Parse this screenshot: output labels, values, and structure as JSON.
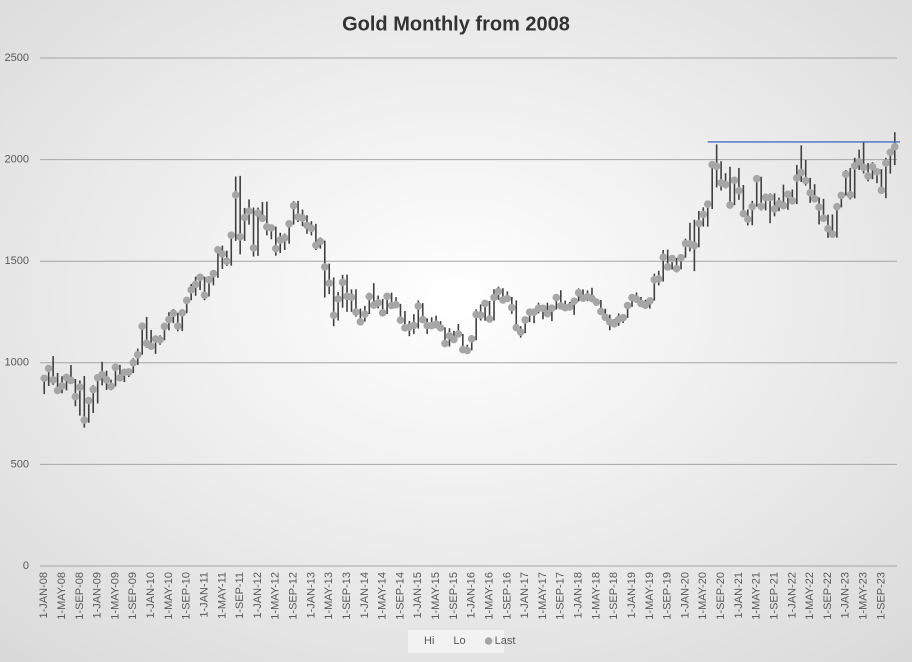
{
  "chart_data": {
    "type": "hilo",
    "title": "Gold Monthly from 2008",
    "categories": [
      "1-JAN-08",
      null,
      null,
      null,
      "1-MAY-08",
      null,
      null,
      null,
      "1-SEP-08",
      null,
      null,
      null,
      "1-JAN-09",
      null,
      null,
      null,
      "1-MAY-09",
      null,
      null,
      null,
      "1-SEP-09",
      null,
      null,
      null,
      "1-JAN-10",
      null,
      null,
      null,
      "1-MAY-10",
      null,
      null,
      null,
      "1-SEP-10",
      null,
      null,
      null,
      "1-JAN-11",
      null,
      null,
      null,
      "1-MAY-11",
      null,
      null,
      null,
      "1-SEP-11",
      null,
      null,
      null,
      "1-JAN-12",
      null,
      null,
      null,
      "1-MAY-12",
      null,
      null,
      null,
      "1-SEP-12",
      null,
      null,
      null,
      "1-JAN-13",
      null,
      null,
      null,
      "1-MAY-13",
      null,
      null,
      null,
      "1-SEP-13",
      null,
      null,
      null,
      "1-JAN-14",
      null,
      null,
      null,
      "1-MAY-14",
      null,
      null,
      null,
      "1-SEP-14",
      null,
      null,
      null,
      "1-JAN-15",
      null,
      null,
      null,
      "1-MAY-15",
      null,
      null,
      null,
      "1-SEP-15",
      null,
      null,
      null,
      "1-JAN-16",
      null,
      null,
      null,
      "1-MAY-16",
      null,
      null,
      null,
      "1-SEP-16",
      null,
      null,
      null,
      "1-JAN-17",
      null,
      null,
      null,
      "1-MAY-17",
      null,
      null,
      null,
      "1-SEP-17",
      null,
      null,
      null,
      "1-JAN-18",
      null,
      null,
      null,
      "1-MAY-18",
      null,
      null,
      null,
      "1-SEP-18",
      null,
      null,
      null,
      "1-JAN-19",
      null,
      null,
      null,
      "1-MAY-19",
      null,
      null,
      null,
      "1-SEP-19",
      null,
      null,
      null,
      "1-JAN-20",
      null,
      null,
      null,
      "1-MAY-20",
      null,
      null,
      null,
      "1-SEP-20",
      null,
      null,
      null,
      "1-JAN-21",
      null,
      null,
      null,
      "1-MAY-21",
      null,
      null,
      null,
      "1-SEP-21",
      null,
      null,
      null,
      "1-JAN-22",
      null,
      null,
      null,
      "1-MAY-22",
      null,
      null,
      null,
      "1-SEP-22",
      null,
      null,
      null,
      "1-JAN-23",
      null,
      null,
      null,
      "1-MAY-23",
      null,
      null,
      null,
      "1-SEP-23",
      null,
      null,
      null
    ],
    "series": [
      {
        "name": "Hi",
        "color": "#404040",
        "values": [
          932,
          975,
          1033,
          950,
          934,
          944,
          989,
          920,
          913,
          935,
          826,
          890,
          934,
          1005,
          961,
          917,
          981,
          990,
          960,
          972,
          1022,
          1070,
          1195,
          1226,
          1162,
          1128,
          1135,
          1180,
          1249,
          1265,
          1246,
          1250,
          1310,
          1388,
          1424,
          1432,
          1424,
          1413,
          1448,
          1575,
          1577,
          1552,
          1632,
          1917,
          1920,
          1762,
          1804,
          1764,
          1764,
          1791,
          1793,
          1676,
          1670,
          1640,
          1636,
          1692,
          1795,
          1797,
          1754,
          1726,
          1697,
          1684,
          1617,
          1601,
          1488,
          1420,
          1348,
          1433,
          1434,
          1361,
          1362,
          1267,
          1280,
          1345,
          1392,
          1331,
          1315,
          1332,
          1345,
          1323,
          1290,
          1255,
          1206,
          1239,
          1307,
          1294,
          1219,
          1224,
          1232,
          1205,
          1175,
          1170,
          1157,
          1191,
          1142,
          1089,
          1127,
          1263,
          1287,
          1299,
          1304,
          1362,
          1375,
          1367,
          1352,
          1324,
          1307,
          1180,
          1220,
          1264,
          1261,
          1296,
          1273,
          1296,
          1270,
          1331,
          1357,
          1306,
          1299,
          1307,
          1366,
          1361,
          1356,
          1369,
          1317,
          1309,
          1266,
          1237,
          1214,
          1243,
          1237,
          1285,
          1326,
          1346,
          1324,
          1310,
          1306,
          1439,
          1453,
          1555,
          1557,
          1517,
          1516,
          1525,
          1611,
          1689,
          1704,
          1747,
          1765,
          1789,
          1981,
          2075,
          1992,
          1933,
          1965,
          1906,
          1959,
          1875,
          1755,
          1797,
          1913,
          1916,
          1832,
          1834,
          1834,
          1813,
          1877,
          1831,
          1853,
          1974,
          2070,
          1998,
          1910,
          1879,
          1814,
          1807,
          1729,
          1730,
          1786,
          1833,
          1949,
          1959,
          2009,
          2049,
          2085,
          1983,
          1987,
          1949,
          1953,
          2009,
          2052,
          2135
        ]
      },
      {
        "name": "Lo",
        "color": "#404040",
        "values": [
          846,
          886,
          892,
          862,
          850,
          864,
          906,
          786,
          740,
          681,
          705,
          753,
          800,
          889,
          866,
          865,
          884,
          915,
          905,
          930,
          950,
          990,
          1040,
          1075,
          1072,
          1044,
          1089,
          1111,
          1160,
          1195,
          1155,
          1156,
          1244,
          1308,
          1330,
          1358,
          1308,
          1326,
          1381,
          1418,
          1462,
          1477,
          1478,
          1600,
          1534,
          1600,
          1680,
          1523,
          1526,
          1700,
          1627,
          1608,
          1527,
          1540,
          1555,
          1586,
          1680,
          1693,
          1672,
          1635,
          1627,
          1555,
          1562,
          1321,
          1338,
          1180,
          1208,
          1271,
          1251,
          1251,
          1227,
          1187,
          1203,
          1240,
          1277,
          1268,
          1240,
          1240,
          1280,
          1272,
          1205,
          1161,
          1131,
          1142,
          1168,
          1197,
          1142,
          1175,
          1170,
          1162,
          1077,
          1080,
          1097,
          1136,
          1053,
          1046,
          1061,
          1111,
          1208,
          1207,
          1200,
          1208,
          1310,
          1301,
          1302,
          1241,
          1171,
          1124,
          1146,
          1200,
          1195,
          1243,
          1214,
          1236,
          1205,
          1262,
          1271,
          1260,
          1264,
          1236,
          1302,
          1307,
          1303,
          1302,
          1282,
          1245,
          1211,
          1160,
          1180,
          1182,
          1196,
          1221,
          1275,
          1302,
          1280,
          1266,
          1267,
          1306,
          1381,
          1400,
          1459,
          1459,
          1445,
          1460,
          1517,
          1548,
          1451,
          1568,
          1670,
          1670,
          1757,
          1863,
          1848,
          1859,
          1765,
          1776,
          1802,
          1717,
          1676,
          1677,
          1769,
          1750,
          1750,
          1687,
          1721,
          1746,
          1758,
          1753,
          1780,
          1781,
          1890,
          1872,
          1787,
          1805,
          1681,
          1709,
          1615,
          1617,
          1616,
          1765,
          1823,
          1804,
          1809,
          1949,
          1932,
          1893,
          1903,
          1884,
          1848,
          1810,
          1931,
          1973
        ]
      },
      {
        "name": "Last",
        "color": "#a6a6a6",
        "values": [
          924,
          972,
          916,
          864,
          886,
          928,
          913,
          834,
          880,
          718,
          814,
          869,
          927,
          942,
          916,
          884,
          978,
          926,
          953,
          955,
          1000,
          1040,
          1180,
          1096,
          1082,
          1117,
          1113,
          1179,
          1213,
          1244,
          1181,
          1246,
          1307,
          1359,
          1386,
          1421,
          1333,
          1409,
          1439,
          1556,
          1536,
          1500,
          1628,
          1826,
          1620,
          1715,
          1746,
          1565,
          1737,
          1711,
          1669,
          1664,
          1562,
          1604,
          1614,
          1684,
          1773,
          1718,
          1712,
          1676,
          1662,
          1579,
          1597,
          1472,
          1392,
          1234,
          1314,
          1396,
          1327,
          1323,
          1250,
          1202,
          1240,
          1326,
          1284,
          1295,
          1246,
          1327,
          1282,
          1286,
          1210,
          1172,
          1175,
          1184,
          1279,
          1213,
          1183,
          1183,
          1190,
          1172,
          1095,
          1133,
          1115,
          1142,
          1065,
          1061,
          1118,
          1238,
          1235,
          1292,
          1215,
          1322,
          1351,
          1309,
          1316,
          1272,
          1173,
          1151,
          1211,
          1249,
          1249,
          1268,
          1268,
          1242,
          1269,
          1321,
          1280,
          1271,
          1275,
          1303,
          1345,
          1318,
          1325,
          1316,
          1298,
          1253,
          1224,
          1201,
          1192,
          1214,
          1222,
          1282,
          1321,
          1313,
          1292,
          1284,
          1305,
          1409,
          1413,
          1520,
          1472,
          1513,
          1464,
          1517,
          1587,
          1585,
          1577,
          1686,
          1730,
          1781,
          1975,
          1967,
          1886,
          1878,
          1776,
          1898,
          1847,
          1734,
          1707,
          1769,
          1906,
          1770,
          1814,
          1813,
          1757,
          1783,
          1774,
          1829,
          1797,
          1909,
          1937,
          1897,
          1837,
          1807,
          1766,
          1711,
          1660,
          1633,
          1768,
          1824,
          1928,
          1827,
          1969,
          1990,
          1962,
          1919,
          1965,
          1940,
          1849,
          1983,
          2036,
          2063
        ]
      }
    ],
    "reference_line": {
      "value": 2087,
      "start": 149,
      "color": "#4472c4"
    },
    "ylim": [
      0,
      2500
    ],
    "yticks": [
      0,
      500,
      1000,
      1500,
      2000,
      2500
    ],
    "grid": true,
    "legend": "bottom"
  }
}
